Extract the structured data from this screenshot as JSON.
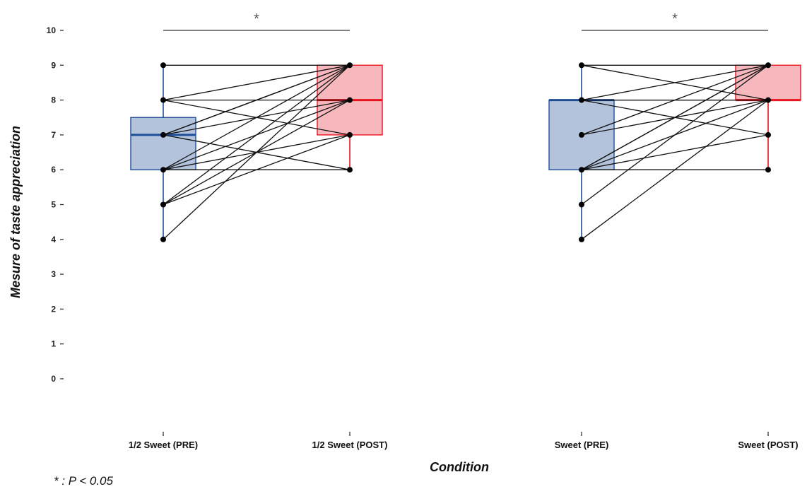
{
  "chart_data": {
    "type": "box",
    "ylabel": "Mesure of taste appreciation",
    "xlabel": "Condition",
    "ylim": [
      0,
      10
    ],
    "y_ticks": [
      "0",
      "1",
      "2",
      "3",
      "4",
      "5",
      "6",
      "7",
      "8",
      "9",
      "10"
    ],
    "categories": [
      "1/2 Sweet (PRE)",
      "1/2 Sweet (POST)",
      "Sweet (PRE)",
      "Sweet (POST)"
    ],
    "footnote": "* : P < 0.05",
    "colors": {
      "pre": "#1f4e99",
      "pre_fill": "#b3c3dc",
      "post": "#e8141e",
      "post_fill": "#f7b8bd"
    },
    "boxes": [
      {
        "category": "1/2 Sweet (PRE)",
        "group": "pre",
        "min": 4,
        "q1": 6,
        "median": 7,
        "q3": 7.5,
        "max": 9
      },
      {
        "category": "1/2 Sweet (POST)",
        "group": "post",
        "min": 6,
        "q1": 7,
        "median": 8,
        "q3": 9,
        "max": 9
      },
      {
        "category": "Sweet (PRE)",
        "group": "pre",
        "min": 4,
        "q1": 6,
        "median": 8,
        "q3": 8,
        "max": 9
      },
      {
        "category": "Sweet (POST)",
        "group": "post",
        "min": 6,
        "q1": 8,
        "median": 8,
        "q3": 9,
        "max": 9
      }
    ],
    "paired_lines": [
      {
        "pre": "1/2 Sweet (PRE)",
        "post": "1/2 Sweet (POST)",
        "pairs": [
          [
            9,
            9
          ],
          [
            8,
            8
          ],
          [
            8,
            7
          ],
          [
            8,
            9
          ],
          [
            7,
            9
          ],
          [
            7,
            9
          ],
          [
            7,
            6
          ],
          [
            7,
            8
          ],
          [
            6,
            6
          ],
          [
            6,
            7
          ],
          [
            6,
            9
          ],
          [
            6,
            8
          ],
          [
            5,
            7
          ],
          [
            5,
            9
          ],
          [
            5,
            8
          ],
          [
            4,
            9
          ]
        ]
      },
      {
        "pre": "Sweet (PRE)",
        "post": "Sweet (POST)",
        "pairs": [
          [
            9,
            9
          ],
          [
            9,
            8
          ],
          [
            8,
            8
          ],
          [
            8,
            8
          ],
          [
            8,
            9
          ],
          [
            8,
            7
          ],
          [
            7,
            9
          ],
          [
            7,
            8
          ],
          [
            6,
            6
          ],
          [
            6,
            9
          ],
          [
            6,
            8
          ],
          [
            6,
            7
          ],
          [
            6,
            9
          ],
          [
            5,
            9
          ],
          [
            4,
            8
          ]
        ]
      }
    ],
    "significance": [
      {
        "from": "1/2 Sweet (PRE)",
        "to": "1/2 Sweet (POST)",
        "label": "*",
        "y": 10
      },
      {
        "from": "Sweet (PRE)",
        "to": "Sweet (POST)",
        "label": "*",
        "y": 10
      }
    ]
  }
}
